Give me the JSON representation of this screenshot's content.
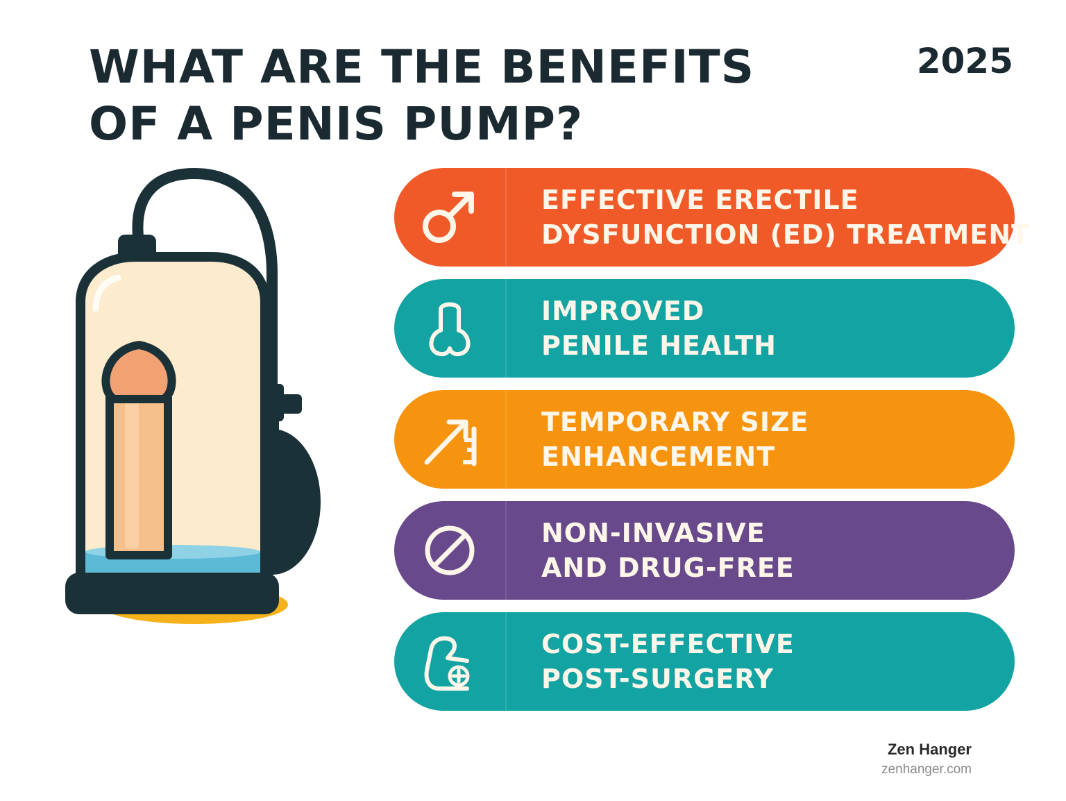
{
  "title": {
    "line1": "WHAT ARE THE BENEFITS",
    "line2": "OF A PENIS PUMP?"
  },
  "year": "2025",
  "illustration": {
    "icon": "penis-pump-icon"
  },
  "benefits": [
    {
      "line1": "EFFECTIVE ERECTILE",
      "line2": "DYSFUNCTION (ED) TREATMENT",
      "icon": "male-symbol-icon",
      "color": "#f05a28"
    },
    {
      "line1": "IMPROVED",
      "line2": "PENILE HEALTH",
      "icon": "health-outline-icon",
      "color": "#12a3a2"
    },
    {
      "line1": "TEMPORARY SIZE",
      "line2": "ENHANCEMENT",
      "icon": "size-arrow-icon",
      "color": "#f7940f"
    },
    {
      "line1": "NON-INVASIVE",
      "line2": "AND DRUG-FREE",
      "icon": "prohibited-icon",
      "color": "#67498c"
    },
    {
      "line1": "COST-EFFECTIVE",
      "line2": "POST-SURGERY",
      "icon": "medical-plus-icon",
      "color": "#12a3a2"
    }
  ],
  "footer": {
    "brand": "Zen Hanger",
    "site": "zenhanger.com"
  }
}
